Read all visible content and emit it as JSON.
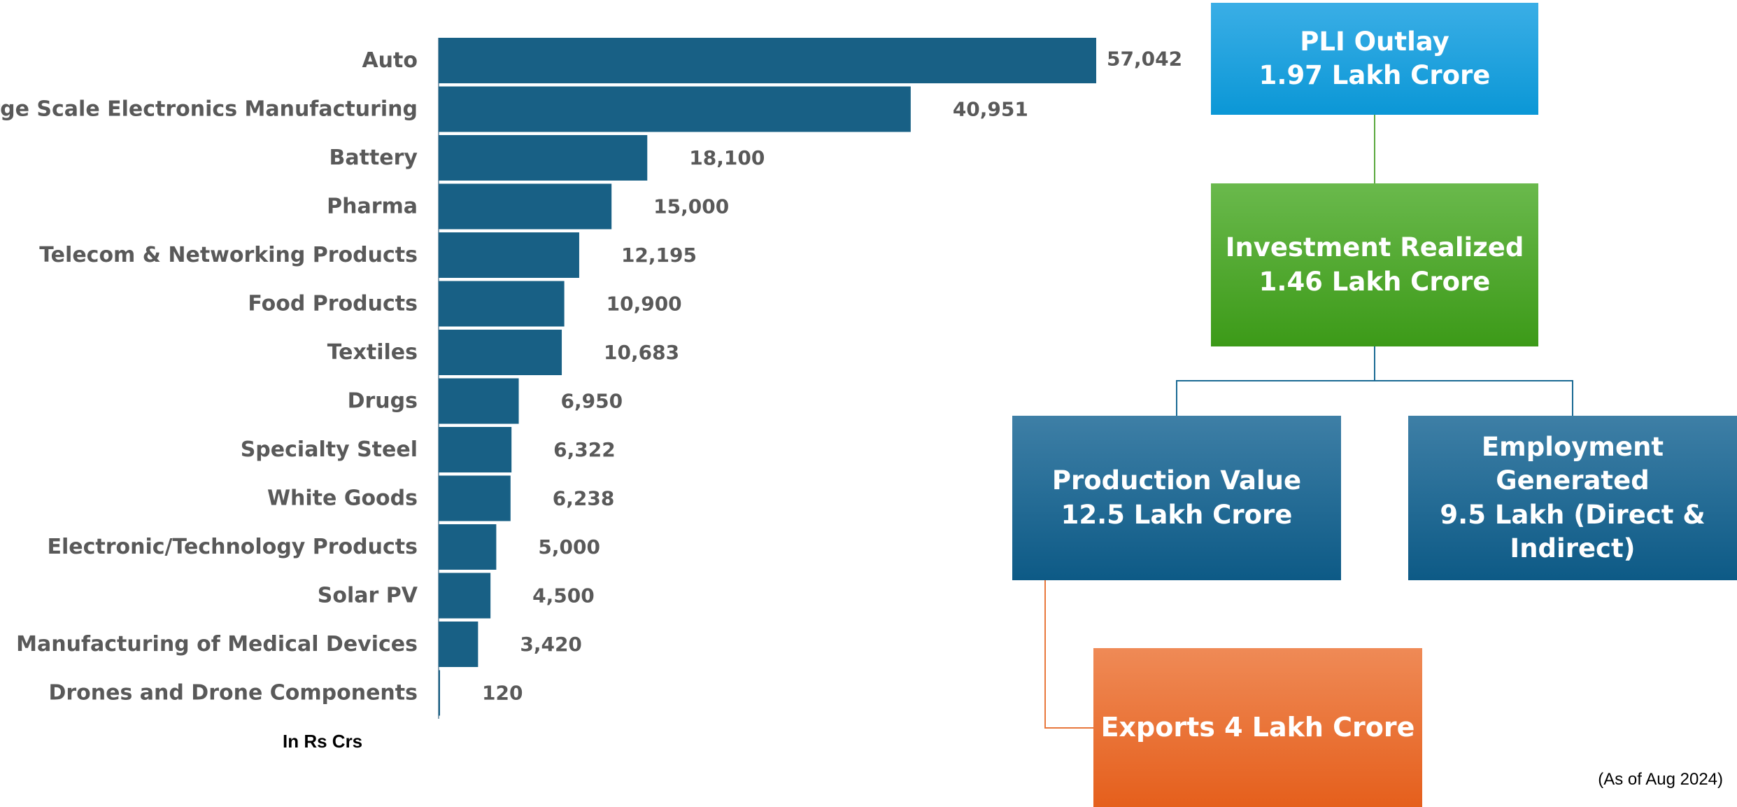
{
  "chart_data": {
    "type": "bar",
    "orientation": "horizontal",
    "categories": [
      "Auto",
      "Large Scale Electronics Manufacturing",
      "Battery",
      "Pharma",
      "Telecom & Networking Products",
      "Food Products",
      "Textiles",
      "Drugs",
      "Specialty Steel",
      "White Goods",
      "Electronic/Technology Products",
      "Solar PV",
      "Manufacturing of Medical Devices",
      "Drones and Drone Components"
    ],
    "values": [
      57042,
      40951,
      18100,
      15000,
      12195,
      10900,
      10683,
      6950,
      6322,
      6238,
      5000,
      4500,
      3420,
      120
    ],
    "value_labels": [
      "57,042",
      "40,951",
      "18,100",
      "15,000",
      "12,195",
      "10,900",
      "10,683",
      "6,950",
      "6,322",
      "6,238",
      "5,000",
      "4,500",
      "3,420",
      "120"
    ],
    "unit_label": "In Rs Crs",
    "xlim": [
      0,
      57042
    ],
    "grid": false,
    "bar_color": "#186085",
    "legend": "none"
  },
  "flow": {
    "outlay": {
      "line1": "PLI Outlay",
      "line2": "1.97 Lakh Crore",
      "color": "#0b97d6"
    },
    "investment": {
      "line1": "Investment Realized",
      "line2": "1.46 Lakh Crore",
      "color": "#3c9a18"
    },
    "production": {
      "line1": "Production Value",
      "line2": "12.5 Lakh Crore",
      "color": "#0d5a86"
    },
    "employment": {
      "line1": "Employment Generated",
      "line2": "9.5 Lakh (Direct & Indirect)",
      "color": "#0d5a86"
    },
    "exports": {
      "line1": "Exports 4 Lakh Crore",
      "color": "#e55f1c"
    }
  },
  "footnote": "(As of Aug 2024)"
}
